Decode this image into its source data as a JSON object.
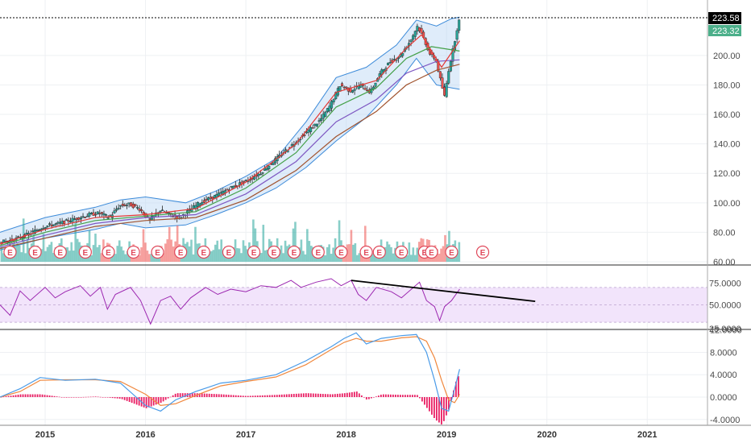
{
  "colors": {
    "up": "#26a69a",
    "down": "#ef5350",
    "bb_fill": "#b8d4f5",
    "bb_line": "#3d8bd9",
    "ma_red": "#e53935",
    "ma_green": "#43a047",
    "ma_purple": "#7e57c2",
    "ma_brown": "#a0522d",
    "rsi_line": "#9c27b0",
    "rsi_band": "#f2e4fb",
    "macd_line": "#4a9be8",
    "signal_line": "#f0883e",
    "hist": "#e91e63",
    "earnings": "#e0495b",
    "last_price_bg": "#000000",
    "prev_price_bg": "#4caf8a"
  },
  "price_tags": {
    "last": "223.58",
    "prev": "223.32"
  },
  "earnings_label": "E",
  "chart_data": [
    {
      "type": "candlestick",
      "x_ticks": [
        "2015",
        "2016",
        "2017",
        "2018",
        "2019",
        "2020",
        "2021"
      ],
      "x_range": [
        2014.55,
        2021.6
      ],
      "y_ticks": [
        "200.00",
        "180.00",
        "160.00",
        "140.00",
        "120.00",
        "100.00",
        "80.00",
        "60.00"
      ],
      "y_range": [
        58,
        225
      ],
      "price_path": [
        [
          2014.55,
          73
        ],
        [
          2014.7,
          75
        ],
        [
          2014.85,
          79
        ],
        [
          2015.0,
          84
        ],
        [
          2015.15,
          86
        ],
        [
          2015.3,
          89
        ],
        [
          2015.45,
          92
        ],
        [
          2015.55,
          93
        ],
        [
          2015.65,
          90
        ],
        [
          2015.75,
          98
        ],
        [
          2015.85,
          99
        ],
        [
          2015.95,
          96
        ],
        [
          2016.05,
          88
        ],
        [
          2016.15,
          95
        ],
        [
          2016.25,
          92
        ],
        [
          2016.35,
          90
        ],
        [
          2016.45,
          95
        ],
        [
          2016.55,
          100
        ],
        [
          2016.65,
          103
        ],
        [
          2016.75,
          106
        ],
        [
          2016.85,
          110
        ],
        [
          2016.95,
          113
        ],
        [
          2017.05,
          116
        ],
        [
          2017.15,
          120
        ],
        [
          2017.25,
          126
        ],
        [
          2017.35,
          132
        ],
        [
          2017.45,
          138
        ],
        [
          2017.55,
          144
        ],
        [
          2017.65,
          150
        ],
        [
          2017.75,
          156
        ],
        [
          2017.85,
          166
        ],
        [
          2017.95,
          180
        ],
        [
          2018.05,
          176
        ],
        [
          2018.15,
          180
        ],
        [
          2018.25,
          175
        ],
        [
          2018.35,
          188
        ],
        [
          2018.45,
          196
        ],
        [
          2018.55,
          200
        ],
        [
          2018.65,
          210
        ],
        [
          2018.72,
          220
        ],
        [
          2018.78,
          212
        ],
        [
          2018.85,
          200
        ],
        [
          2018.9,
          198
        ],
        [
          2018.95,
          183
        ],
        [
          2018.99,
          172
        ],
        [
          2019.03,
          190
        ],
        [
          2019.08,
          206
        ],
        [
          2019.13,
          223.6
        ]
      ],
      "bb_upper": [
        [
          2014.55,
          80
        ],
        [
          2015.0,
          90
        ],
        [
          2015.5,
          97
        ],
        [
          2015.75,
          102
        ],
        [
          2016.0,
          104
        ],
        [
          2016.4,
          100
        ],
        [
          2016.7,
          108
        ],
        [
          2017.0,
          118
        ],
        [
          2017.3,
          130
        ],
        [
          2017.6,
          155
        ],
        [
          2017.9,
          185
        ],
        [
          2018.2,
          192
        ],
        [
          2018.5,
          207
        ],
        [
          2018.7,
          224
        ],
        [
          2018.9,
          220
        ],
        [
          2019.05,
          225
        ],
        [
          2019.13,
          226
        ]
      ],
      "bb_lower": [
        [
          2014.55,
          68
        ],
        [
          2015.0,
          76
        ],
        [
          2015.5,
          82
        ],
        [
          2015.75,
          86
        ],
        [
          2016.0,
          83
        ],
        [
          2016.4,
          85
        ],
        [
          2016.7,
          92
        ],
        [
          2017.0,
          100
        ],
        [
          2017.3,
          110
        ],
        [
          2017.6,
          124
        ],
        [
          2017.9,
          142
        ],
        [
          2018.2,
          158
        ],
        [
          2018.5,
          180
        ],
        [
          2018.7,
          198
        ],
        [
          2018.9,
          180
        ],
        [
          2019.05,
          178
        ],
        [
          2019.13,
          177
        ]
      ],
      "ma_fast": [
        [
          2014.55,
          72
        ],
        [
          2015.0,
          82
        ],
        [
          2015.5,
          90
        ],
        [
          2016.0,
          92
        ],
        [
          2016.5,
          96
        ],
        [
          2017.0,
          114
        ],
        [
          2017.5,
          140
        ],
        [
          2017.9,
          175
        ],
        [
          2018.3,
          183
        ],
        [
          2018.6,
          205
        ],
        [
          2018.75,
          214
        ],
        [
          2018.95,
          192
        ],
        [
          2019.13,
          210
        ]
      ],
      "ma_mid": [
        [
          2014.55,
          71
        ],
        [
          2015.0,
          80
        ],
        [
          2015.5,
          88
        ],
        [
          2016.0,
          91
        ],
        [
          2016.5,
          94
        ],
        [
          2017.0,
          110
        ],
        [
          2017.5,
          134
        ],
        [
          2017.9,
          165
        ],
        [
          2018.3,
          178
        ],
        [
          2018.6,
          198
        ],
        [
          2018.85,
          206
        ],
        [
          2019.13,
          203
        ]
      ],
      "ma_slow": [
        [
          2014.55,
          70
        ],
        [
          2015.0,
          78
        ],
        [
          2015.5,
          86
        ],
        [
          2016.0,
          90
        ],
        [
          2016.5,
          92
        ],
        [
          2017.0,
          106
        ],
        [
          2017.5,
          128
        ],
        [
          2017.9,
          155
        ],
        [
          2018.3,
          170
        ],
        [
          2018.6,
          188
        ],
        [
          2018.9,
          196
        ],
        [
          2019.13,
          197
        ]
      ],
      "ma_200": [
        [
          2014.55,
          69
        ],
        [
          2015.0,
          76
        ],
        [
          2015.5,
          84
        ],
        [
          2016.0,
          88
        ],
        [
          2016.5,
          90
        ],
        [
          2017.0,
          102
        ],
        [
          2017.5,
          122
        ],
        [
          2017.9,
          145
        ],
        [
          2018.3,
          162
        ],
        [
          2018.6,
          180
        ],
        [
          2018.9,
          190
        ],
        [
          2019.13,
          194
        ]
      ],
      "earnings_dates": [
        2014.65,
        2014.9,
        2015.15,
        2015.4,
        2015.63,
        2015.88,
        2016.12,
        2016.35,
        2016.58,
        2016.83,
        2017.08,
        2017.28,
        2017.48,
        2017.72,
        2017.95,
        2018.2,
        2018.33,
        2018.55,
        2018.78,
        2018.85,
        2019.05,
        2019.36
      ]
    },
    {
      "type": "line",
      "y_ticks": [
        "75.0000",
        "50.0000",
        "25.0000"
      ],
      "y_range": [
        22,
        80
      ],
      "band": [
        30,
        70
      ],
      "rsi": [
        [
          2014.55,
          50
        ],
        [
          2014.65,
          38
        ],
        [
          2014.75,
          66
        ],
        [
          2014.85,
          55
        ],
        [
          2015.0,
          70
        ],
        [
          2015.1,
          58
        ],
        [
          2015.2,
          65
        ],
        [
          2015.35,
          72
        ],
        [
          2015.45,
          60
        ],
        [
          2015.55,
          70
        ],
        [
          2015.62,
          45
        ],
        [
          2015.7,
          62
        ],
        [
          2015.85,
          70
        ],
        [
          2015.95,
          55
        ],
        [
          2016.05,
          28
        ],
        [
          2016.15,
          55
        ],
        [
          2016.25,
          60
        ],
        [
          2016.35,
          45
        ],
        [
          2016.45,
          58
        ],
        [
          2016.6,
          70
        ],
        [
          2016.72,
          62
        ],
        [
          2016.85,
          68
        ],
        [
          2017.0,
          65
        ],
        [
          2017.15,
          72
        ],
        [
          2017.3,
          70
        ],
        [
          2017.45,
          78
        ],
        [
          2017.55,
          70
        ],
        [
          2017.7,
          76
        ],
        [
          2017.85,
          80
        ],
        [
          2017.95,
          72
        ],
        [
          2018.05,
          78
        ],
        [
          2018.12,
          62
        ],
        [
          2018.2,
          55
        ],
        [
          2018.3,
          70
        ],
        [
          2018.45,
          65
        ],
        [
          2018.55,
          58
        ],
        [
          2018.65,
          68
        ],
        [
          2018.73,
          76
        ],
        [
          2018.8,
          55
        ],
        [
          2018.88,
          48
        ],
        [
          2018.93,
          32
        ],
        [
          2018.98,
          48
        ],
        [
          2019.05,
          55
        ],
        [
          2019.13,
          68
        ]
      ],
      "trendline": [
        [
          2018.05,
          78
        ],
        [
          2019.0,
          54
        ]
      ]
    },
    {
      "type": "line",
      "y_ticks": [
        "12.0000",
        "8.0000",
        "4.0000",
        "0.0000",
        "-4.0000"
      ],
      "y_range": [
        -5,
        13
      ],
      "macd": [
        [
          2014.55,
          0
        ],
        [
          2014.75,
          1.5
        ],
        [
          2014.95,
          3.5
        ],
        [
          2015.2,
          3.0
        ],
        [
          2015.5,
          3.2
        ],
        [
          2015.75,
          2.5
        ],
        [
          2016.0,
          -1.5
        ],
        [
          2016.15,
          -2.5
        ],
        [
          2016.3,
          -0.5
        ],
        [
          2016.5,
          1.0
        ],
        [
          2016.75,
          2.5
        ],
        [
          2017.0,
          3.0
        ],
        [
          2017.3,
          4.0
        ],
        [
          2017.6,
          6.5
        ],
        [
          2017.85,
          9.0
        ],
        [
          2017.98,
          10.5
        ],
        [
          2018.1,
          11.5
        ],
        [
          2018.2,
          9.5
        ],
        [
          2018.35,
          10.5
        ],
        [
          2018.55,
          11.0
        ],
        [
          2018.7,
          11.2
        ],
        [
          2018.8,
          8.0
        ],
        [
          2018.88,
          3.0
        ],
        [
          2018.95,
          -2.0
        ],
        [
          2019.02,
          -2.5
        ],
        [
          2019.08,
          1.5
        ],
        [
          2019.13,
          5.0
        ]
      ],
      "signal": [
        [
          2014.55,
          0
        ],
        [
          2014.75,
          1.0
        ],
        [
          2014.95,
          3.0
        ],
        [
          2015.2,
          3.1
        ],
        [
          2015.5,
          3.1
        ],
        [
          2015.75,
          2.8
        ],
        [
          2016.0,
          0.5
        ],
        [
          2016.15,
          -1.5
        ],
        [
          2016.3,
          -1.2
        ],
        [
          2016.5,
          0.3
        ],
        [
          2016.75,
          2.0
        ],
        [
          2017.0,
          2.8
        ],
        [
          2017.3,
          3.6
        ],
        [
          2017.6,
          5.8
        ],
        [
          2017.85,
          8.5
        ],
        [
          2017.98,
          9.8
        ],
        [
          2018.1,
          10.5
        ],
        [
          2018.2,
          10.0
        ],
        [
          2018.35,
          10.0
        ],
        [
          2018.55,
          10.6
        ],
        [
          2018.7,
          10.8
        ],
        [
          2018.8,
          10.0
        ],
        [
          2018.88,
          7.0
        ],
        [
          2018.95,
          3.0
        ],
        [
          2019.02,
          -0.5
        ],
        [
          2019.08,
          -1.0
        ],
        [
          2019.13,
          0.5
        ]
      ],
      "histogram_extremes": {
        "min": -3.8,
        "max": 3.0
      }
    }
  ]
}
